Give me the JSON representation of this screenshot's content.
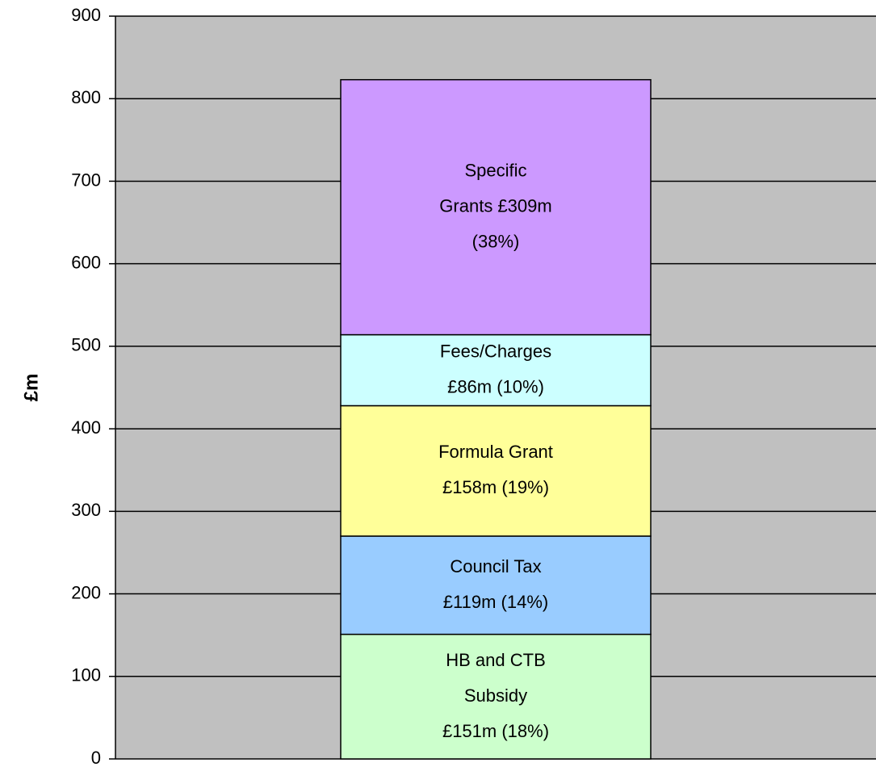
{
  "chart_data": {
    "type": "stacked_bar",
    "y_label": "£m",
    "categories": [
      null
    ],
    "series": [
      {
        "name": "HB and CTB Subsidy",
        "color": "#ccffcc",
        "values": [
          151
        ],
        "value_labels": [
          [
            "HB and CTB",
            "Subsidy",
            "£151m (18%)"
          ]
        ]
      },
      {
        "name": "Council Tax",
        "color": "#99ccff",
        "values": [
          119
        ],
        "value_labels": [
          [
            "Council Tax",
            "£119m (14%)"
          ]
        ]
      },
      {
        "name": "Formula Grant",
        "color": "#ffff99",
        "values": [
          158
        ],
        "value_labels": [
          [
            "Formula Grant",
            "£158m (19%)"
          ]
        ]
      },
      {
        "name": "Fees/Charges",
        "color": "#ccffff",
        "values": [
          86
        ],
        "value_labels": [
          [
            "Fees/Charges",
            "£86m (10%)"
          ]
        ]
      },
      {
        "name": "Specific Grants",
        "color": "#cc99ff",
        "values": [
          309
        ],
        "value_labels": [
          [
            "Specific",
            "Grants £309m",
            "(38%)"
          ]
        ]
      }
    ],
    "ylim": [
      0,
      900
    ],
    "yticks": [
      0,
      100,
      200,
      300,
      400,
      500,
      600,
      700,
      800,
      900
    ],
    "grid": true,
    "background": "#c0c0c0"
  }
}
